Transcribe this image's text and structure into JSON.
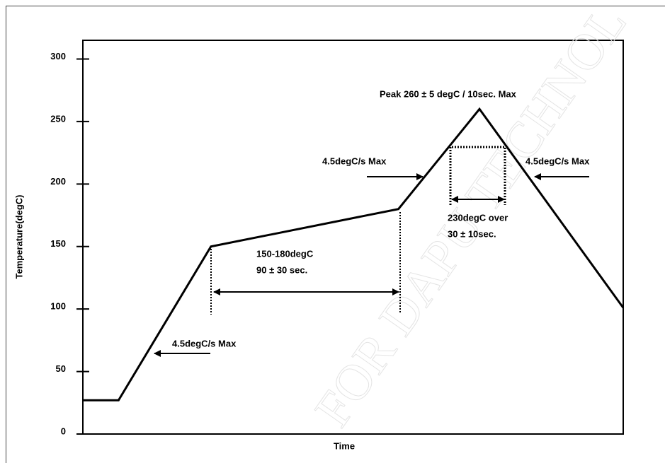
{
  "chart_data": {
    "type": "line",
    "y_label": "Temperature(degC)",
    "x_label": "Time",
    "x": [
      0,
      6.6,
      23.7,
      58.4,
      73.4,
      100
    ],
    "series": [
      {
        "color": "#000000",
        "values": [
          27,
          27,
          150,
          180,
          260,
          101
        ]
      }
    ],
    "xlim": [
      0,
      100
    ],
    "ylim": [
      0,
      315
    ],
    "yticks": [
      0,
      50,
      100,
      150,
      200,
      250,
      300
    ],
    "annotations": [
      "Peak 260 ± 5 degC / 10sec. Max",
      "4.5degC/s Max",
      "4.5degC/s Max",
      "4.5degC/s Max",
      "150-180degC",
      "90 ± 30 sec.",
      "230degC over",
      "30 ± 10sec."
    ],
    "watermark": "FOR DAPU TECHNOL"
  }
}
